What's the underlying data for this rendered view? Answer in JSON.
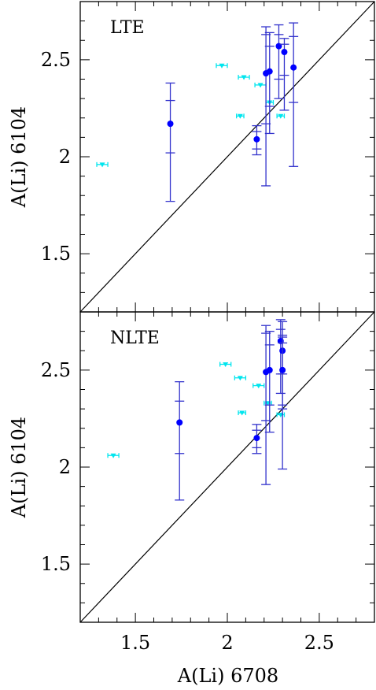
{
  "chart_data": [
    {
      "type": "scatter",
      "panel_label": "LTE",
      "xlabel": "A(Li) 6708",
      "ylabel": "A(Li) 6104",
      "xlim": [
        1.2,
        2.8
      ],
      "ylim": [
        1.2,
        2.8
      ],
      "x_ticks": [
        1.5,
        2,
        2.5
      ],
      "x_tick_labels": [
        "1.5",
        "2",
        "2.5"
      ],
      "y_ticks": [
        1.5,
        2,
        2.5
      ],
      "y_tick_labels": [
        "1.5",
        "2",
        "2.5"
      ],
      "identity_line": true,
      "series": [
        {
          "marker": "circle",
          "color": "#0000ff",
          "errcolor": "#3333cc",
          "points": [
            {
              "x": 1.69,
              "y": 2.17,
              "ylo": 1.77,
              "yhi": 2.38,
              "ylo2": 2.02,
              "yhi2": 2.29
            },
            {
              "x": 2.16,
              "y": 2.09,
              "ylo": 2.01,
              "yhi": 2.16,
              "ylo2": 2.04,
              "yhi2": 2.13
            },
            {
              "x": 2.21,
              "y": 2.43,
              "ylo": 1.85,
              "yhi": 2.67,
              "ylo2": 2.17,
              "yhi2": 2.63
            },
            {
              "x": 2.23,
              "y": 2.44,
              "ylo": 2.12,
              "yhi": 2.64,
              "ylo2": 2.26,
              "yhi2": 2.57
            },
            {
              "x": 2.28,
              "y": 2.57,
              "ylo": 2.3,
              "yhi": 2.68,
              "ylo2": 2.4,
              "yhi2": 2.63
            },
            {
              "x": 2.31,
              "y": 2.54,
              "ylo": 2.24,
              "yhi": 2.61,
              "ylo2": 2.42,
              "yhi2": 2.58
            },
            {
              "x": 2.36,
              "y": 2.46,
              "ylo": 1.95,
              "yhi": 2.69,
              "ylo2": 2.28,
              "yhi2": 2.62
            }
          ]
        },
        {
          "marker": "triangle",
          "color": "#00e5ee",
          "points": [
            {
              "x": 1.32,
              "y": 1.96,
              "xerr": 0.03
            },
            {
              "x": 1.97,
              "y": 2.47,
              "xerr": 0.03
            },
            {
              "x": 2.07,
              "y": 2.21,
              "xerr": 0.02
            },
            {
              "x": 2.09,
              "y": 2.41,
              "xerr": 0.03
            },
            {
              "x": 2.18,
              "y": 2.37,
              "xerr": 0.03
            },
            {
              "x": 2.23,
              "y": 2.28,
              "xerr": 0.02
            },
            {
              "x": 2.29,
              "y": 2.21,
              "xerr": 0.02
            }
          ]
        }
      ]
    },
    {
      "type": "scatter",
      "panel_label": "NLTE",
      "xlabel": "A(Li) 6708",
      "ylabel": "A(Li) 6104",
      "xlim": [
        1.2,
        2.8
      ],
      "ylim": [
        1.2,
        2.8
      ],
      "x_ticks": [
        1.5,
        2,
        2.5
      ],
      "x_tick_labels": [
        "1.5",
        "2",
        "2.5"
      ],
      "y_ticks": [
        1.5,
        2,
        2.5
      ],
      "y_tick_labels": [
        "1.5",
        "2",
        "2.5"
      ],
      "identity_line": true,
      "series": [
        {
          "marker": "circle",
          "color": "#0000ff",
          "errcolor": "#3333cc",
          "points": [
            {
              "x": 1.74,
              "y": 2.23,
              "ylo": 1.83,
              "yhi": 2.44,
              "ylo2": 2.07,
              "yhi2": 2.34
            },
            {
              "x": 2.16,
              "y": 2.15,
              "ylo": 2.07,
              "yhi": 2.22,
              "ylo2": 2.1,
              "yhi2": 2.19
            },
            {
              "x": 2.21,
              "y": 2.49,
              "ylo": 1.91,
              "yhi": 2.73,
              "ylo2": 2.24,
              "yhi2": 2.69
            },
            {
              "x": 2.23,
              "y": 2.5,
              "ylo": 2.18,
              "yhi": 2.7,
              "ylo2": 2.32,
              "yhi2": 2.63
            },
            {
              "x": 2.29,
              "y": 2.65,
              "ylo": 2.38,
              "yhi": 2.76,
              "ylo2": 2.48,
              "yhi2": 2.71
            },
            {
              "x": 2.3,
              "y": 2.6,
              "ylo": 2.3,
              "yhi": 2.67,
              "ylo2": 2.48,
              "yhi2": 2.64
            },
            {
              "x": 2.3,
              "y": 2.5,
              "ylo": 1.99,
              "yhi": 2.75,
              "ylo2": 2.32,
              "yhi2": 2.68
            }
          ]
        },
        {
          "marker": "triangle",
          "color": "#00e5ee",
          "points": [
            {
              "x": 1.38,
              "y": 2.06,
              "xerr": 0.03
            },
            {
              "x": 1.99,
              "y": 2.53,
              "xerr": 0.03
            },
            {
              "x": 2.07,
              "y": 2.46,
              "xerr": 0.03
            },
            {
              "x": 2.08,
              "y": 2.28,
              "xerr": 0.02
            },
            {
              "x": 2.17,
              "y": 2.42,
              "xerr": 0.03
            },
            {
              "x": 2.22,
              "y": 2.33,
              "xerr": 0.02
            },
            {
              "x": 2.29,
              "y": 2.27,
              "xerr": 0.02
            }
          ]
        }
      ]
    }
  ]
}
